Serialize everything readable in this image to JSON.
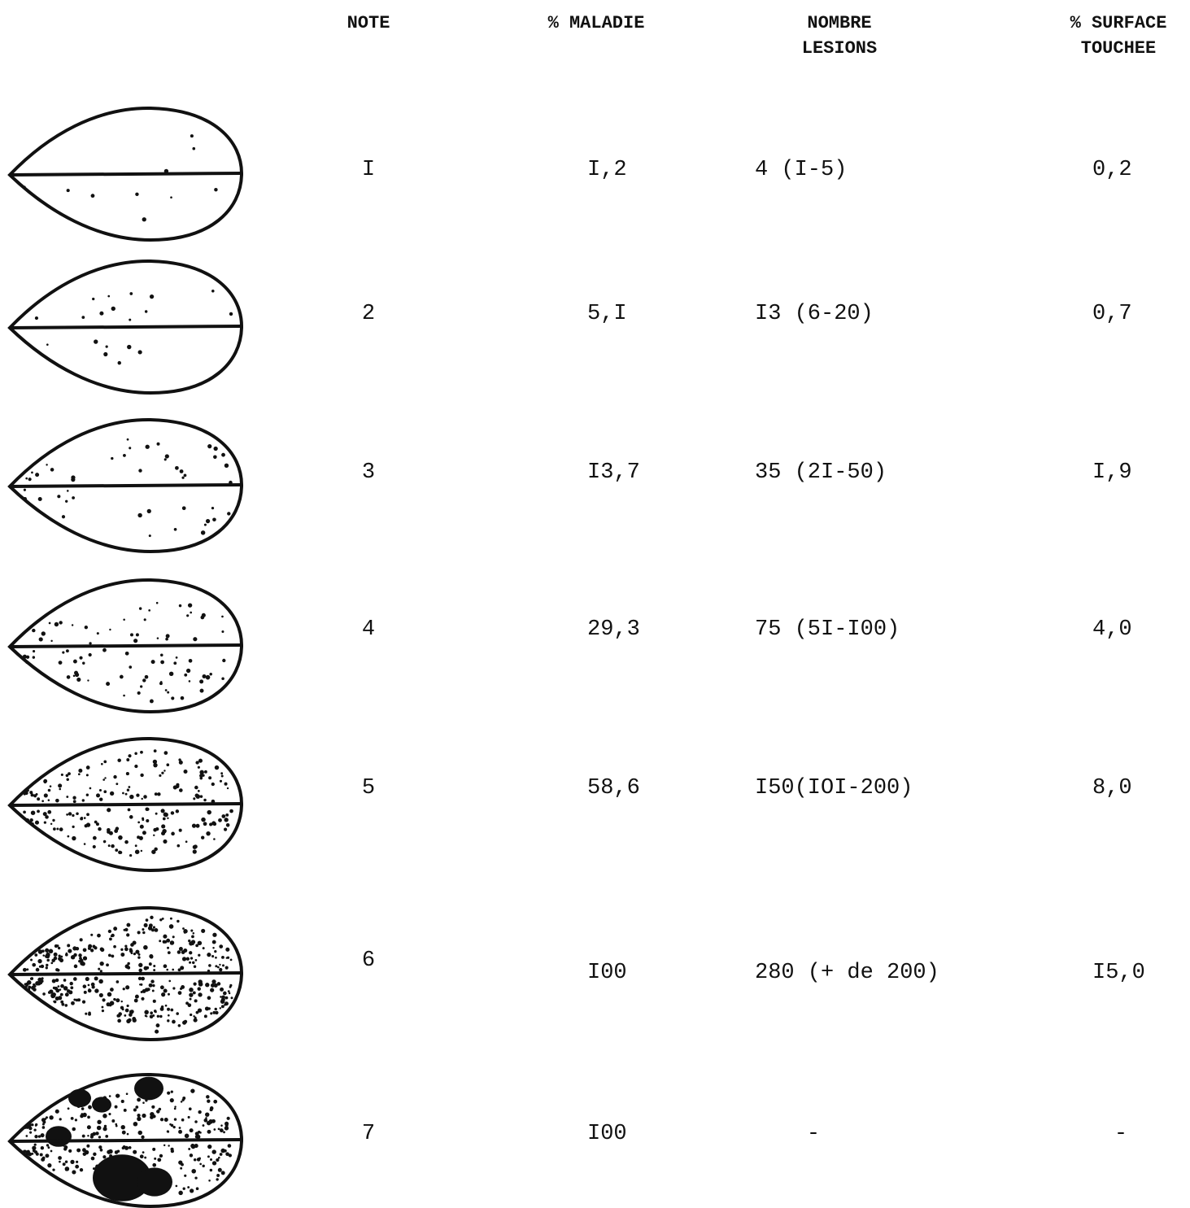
{
  "table": {
    "header": [
      [
        "NOTE"
      ],
      [
        "% MALADIE"
      ],
      [
        "NOMBRE",
        "LESIONS"
      ],
      [
        "% SURFACE",
        "TOUCHEE"
      ]
    ],
    "rows": [
      [
        "I",
        "I,2",
        "4 (I-5)",
        "0,2"
      ],
      [
        "2",
        "5,I",
        "I3 (6-20)",
        "0,7"
      ],
      [
        "3",
        "I3,7",
        "35 (2I-50)",
        "I,9"
      ],
      [
        "4",
        "29,3",
        "75 (5I-I00)",
        "4,0"
      ],
      [
        "5",
        "58,6",
        "I50(IOI-200)",
        "8,0"
      ],
      [
        "6",
        "I00",
        "280 (+ de 200)",
        "I5,0"
      ],
      [
        "7",
        "I00",
        "-",
        "-"
      ]
    ]
  }
}
